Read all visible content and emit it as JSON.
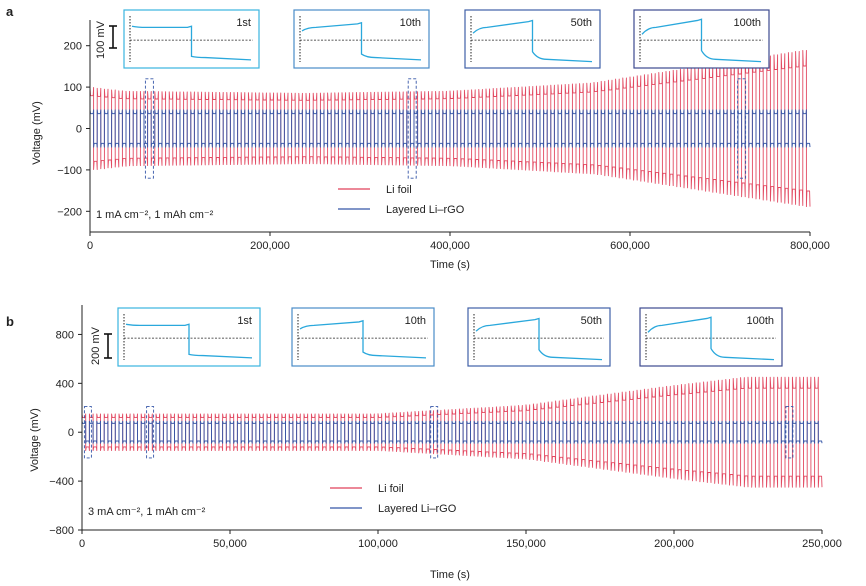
{
  "chart_data": [
    {
      "panel_label": "a",
      "type": "line",
      "xlabel": "Time (s)",
      "ylabel": "Voltage (mV)",
      "xlim": [
        0,
        800000
      ],
      "ylim": [
        -250,
        250
      ],
      "xticks": [
        0,
        200000,
        400000,
        600000,
        800000
      ],
      "xtick_labels": [
        "0",
        "200,000",
        "400,000",
        "600,000",
        "800,000"
      ],
      "yticks": [
        -200,
        -100,
        0,
        100,
        200
      ],
      "ytick_labels": [
        "−200",
        "−100",
        "0",
        "100",
        "200"
      ],
      "condition": "1 mA cm⁻², 1 mAh cm⁻²",
      "scale_bar": "100 mV",
      "insets": [
        "1st",
        "10th",
        "50th",
        "100th"
      ],
      "highlight_x": [
        66000,
        358000,
        724000
      ],
      "series": [
        {
          "name": "Li foil",
          "color": "#e0405a",
          "cycles": 100,
          "envelope_t": [
            0,
            0.05,
            0.3,
            0.5,
            0.7,
            0.85,
            1.0
          ],
          "envelope_amp": [
            100,
            90,
            85,
            90,
            110,
            150,
            190
          ]
        },
        {
          "name": "Layered Li–rGO",
          "color": "#3556a8",
          "cycles": 100,
          "envelope_t": [
            0,
            1.0
          ],
          "envelope_amp": [
            45,
            45
          ]
        }
      ]
    },
    {
      "panel_label": "b",
      "type": "line",
      "xlabel": "Time (s)",
      "ylabel": "Voltage (mV)",
      "xlim": [
        0,
        250000
      ],
      "ylim": [
        -800,
        1000
      ],
      "xticks": [
        0,
        50000,
        100000,
        150000,
        200000,
        250000
      ],
      "xtick_labels": [
        "0",
        "50,000",
        "100,000",
        "150,000",
        "200,000",
        "250,000"
      ],
      "yticks": [
        -800,
        -400,
        0,
        400,
        800
      ],
      "ytick_labels": [
        "−800",
        "−400",
        "0",
        "400",
        "800"
      ],
      "condition": "3 mA cm⁻², 1 mAh cm⁻²",
      "scale_bar": "200 mV",
      "insets": [
        "1st",
        "10th",
        "50th",
        "100th"
      ],
      "highlight_x": [
        2000,
        23000,
        119000,
        239000
      ],
      "series": [
        {
          "name": "Li foil",
          "color": "#e0405a",
          "cycles": 100,
          "envelope_t": [
            0,
            0.4,
            0.6,
            0.8,
            0.9,
            1.0
          ],
          "envelope_amp": [
            150,
            150,
            220,
            380,
            450,
            450
          ]
        },
        {
          "name": "Layered Li–rGO",
          "color": "#3556a8",
          "cycles": 100,
          "envelope_t": [
            0,
            1.0
          ],
          "envelope_amp": [
            90,
            90
          ]
        }
      ]
    }
  ]
}
